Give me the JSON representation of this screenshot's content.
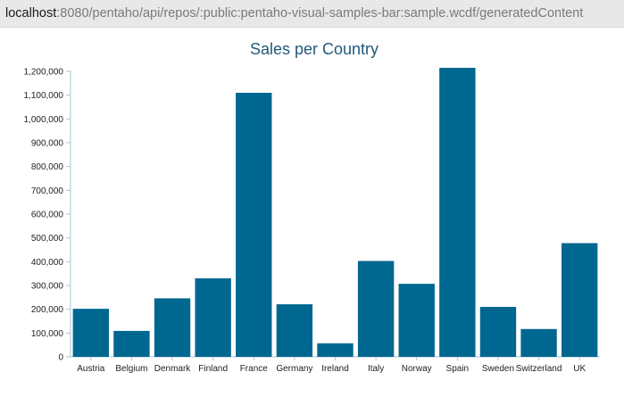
{
  "browser": {
    "url_host": "localhost",
    "url_rest": ":8080/pentaho/api/repos/:public:pentaho-visual-samples-bar:sample.wcdf/generatedContent"
  },
  "colors": {
    "bar": "#006890",
    "title": "#1f5a7a",
    "axis": "#a9c4d3"
  },
  "chart_data": {
    "type": "bar",
    "title": "Sales per Country",
    "xlabel": "",
    "ylabel": "",
    "ylim": [
      0,
      1200000
    ],
    "yticks": [
      0,
      100000,
      200000,
      300000,
      400000,
      500000,
      600000,
      700000,
      800000,
      900000,
      1000000,
      1100000,
      1200000
    ],
    "ytick_labels": [
      "0",
      "100,000",
      "200,000",
      "300,000",
      "400,000",
      "500,000",
      "600,000",
      "700,000",
      "800,000",
      "900,000",
      "1,000,000",
      "1,100,000",
      "1,200,000"
    ],
    "grid": false,
    "legend": "none",
    "categories": [
      "Austria",
      "Belgium",
      "Denmark",
      "Finland",
      "France",
      "Germany",
      "Ireland",
      "Italy",
      "Norway",
      "Spain",
      "Sweden",
      "Switzerland",
      "UK"
    ],
    "values": [
      202000,
      109000,
      246000,
      330000,
      1110000,
      221000,
      57000,
      403000,
      307000,
      1215000,
      210000,
      117000,
      478000
    ]
  }
}
